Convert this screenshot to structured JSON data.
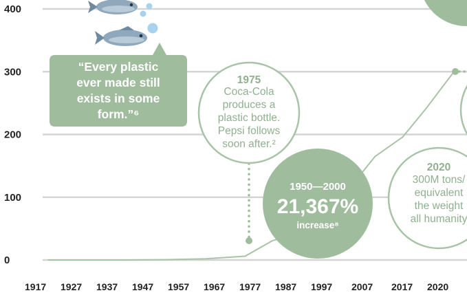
{
  "chart_data": {
    "type": "line",
    "ylim": [
      0,
      400
    ],
    "yticks": [
      "0",
      "100",
      "200",
      "300",
      "400"
    ],
    "xlim": [
      1917,
      2020
    ],
    "xticks": [
      "1917",
      "1927",
      "1937",
      "1947",
      "1957",
      "1967",
      "1977",
      "1987",
      "1997",
      "2007",
      "2017",
      "2020"
    ],
    "grid": true,
    "series": [
      {
        "points": [
          [
            1917,
            0
          ],
          [
            1927,
            0
          ],
          [
            1937,
            0
          ],
          [
            1947,
            0.5
          ],
          [
            1957,
            2
          ],
          [
            1967,
            6
          ],
          [
            1974,
            31
          ],
          [
            1985,
            48
          ],
          [
            2000,
            165
          ],
          [
            2007,
            196
          ],
          [
            2013,
            242
          ],
          [
            2020,
            300
          ]
        ]
      }
    ],
    "annotations": {
      "quote": {
        "lines": [
          "“Every plastic",
          "ever made still",
          "exists in some",
          "form.”⁶"
        ]
      },
      "event_1975": {
        "year": "1975",
        "lines": [
          "Coca-Cola",
          "produces a",
          "plastic bottle.",
          "Pepsi follows",
          "soon after.²"
        ]
      },
      "increase": {
        "range": "1950—2000",
        "value": "21,367%",
        "label": "increase⁸"
      },
      "event_2020": {
        "year": "2020",
        "lines": [
          "300M tons/",
          "equivalent",
          "the weight",
          "all humanity"
        ]
      }
    },
    "colors": {
      "line": "#a8c3a8",
      "accent": "#9fbc9d",
      "accent_text": "#8fb08f",
      "fish": "#8fa8bc",
      "bubble": "#a8d2ee",
      "grid": "#d4d4d4"
    }
  }
}
